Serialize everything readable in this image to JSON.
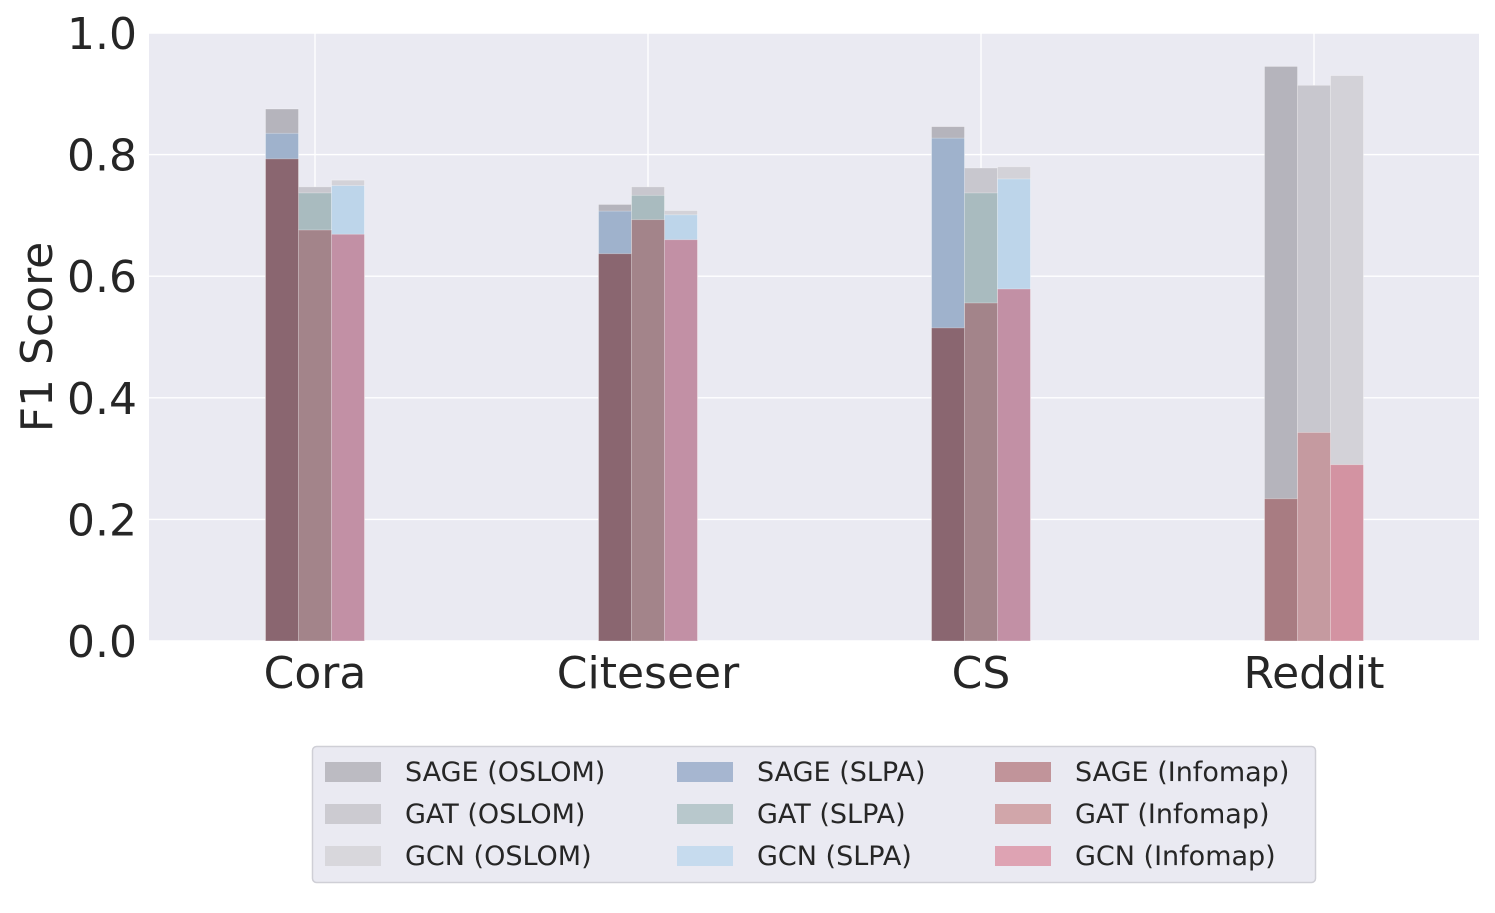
{
  "chart_data": {
    "type": "bar",
    "title": "",
    "xlabel": "",
    "ylabel": "F1 Score",
    "ylim": [
      0,
      1.0
    ],
    "yticks": [
      "0.0",
      "0.2",
      "0.4",
      "0.6",
      "0.8",
      "1.0"
    ],
    "grid": true,
    "legend_position": "bottom-center",
    "categories": [
      "Cora",
      "Citeseer",
      "CS",
      "Reddit"
    ],
    "series": [
      {
        "name": "SAGE (OSLOM)",
        "model": "SAGE",
        "color": "#b5b4bc",
        "values": [
          0.875,
          0.718,
          0.846,
          0.945
        ]
      },
      {
        "name": "GAT (OSLOM)",
        "model": "GAT",
        "color": "#c8c7ce",
        "values": [
          0.747,
          0.747,
          0.778,
          0.914
        ]
      },
      {
        "name": "GCN (OSLOM)",
        "model": "GCN",
        "color": "#d3d2d8",
        "values": [
          0.758,
          0.708,
          0.78,
          0.93
        ]
      },
      {
        "name": "SAGE (SLPA)",
        "model": "SAGE",
        "color": "#9fb2cc",
        "values": [
          0.835,
          0.707,
          0.827,
          null
        ]
      },
      {
        "name": "GAT (SLPA)",
        "model": "GAT",
        "color": "#a9bbbf",
        "values": [
          0.737,
          0.733,
          0.737,
          null
        ]
      },
      {
        "name": "GCN (SLPA)",
        "model": "GCN",
        "color": "#bdd5ea",
        "values": [
          0.749,
          0.701,
          0.76,
          null
        ]
      },
      {
        "name": "SAGE (Infomap)",
        "model": "SAGE",
        "color": "#b98a90",
        "values": [
          0.793,
          0.637,
          0.515,
          0.234
        ]
      },
      {
        "name": "GAT (Infomap)",
        "model": "GAT",
        "color": "#cc9ca0",
        "values": [
          0.676,
          0.693,
          0.556,
          0.343
        ]
      },
      {
        "name": "GCN (Infomap)",
        "model": "GCN",
        "color": "#d69aab",
        "values": [
          0.669,
          0.66,
          0.579,
          0.29
        ]
      }
    ],
    "legend_colors": [
      "#bcbbc2",
      "#cccbd1",
      "#d8d7dc",
      "#a6b6d0",
      "#b8c8cc",
      "#c6dbee",
      "#c1949a",
      "#d1a6aa",
      "#dea3b3"
    ],
    "plot_background": "#eaeaf2"
  }
}
